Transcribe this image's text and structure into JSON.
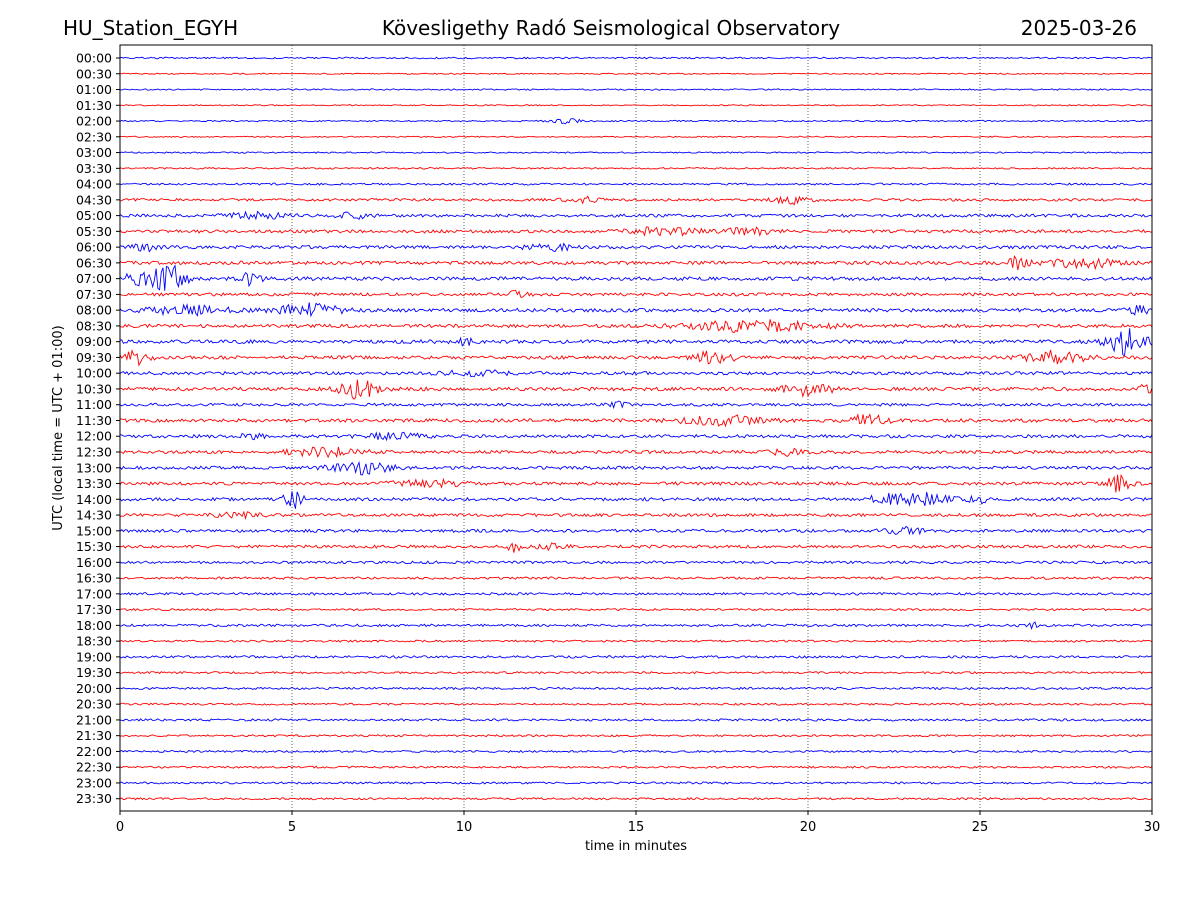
{
  "header": {
    "station": "HU_Station_EGYH",
    "title": "Kövesligethy Radó Seismological Observatory",
    "date": "2025-03-26"
  },
  "chart_data": {
    "type": "line",
    "chart_kind": "helicorder",
    "xlabel": "time in minutes",
    "ylabel": "UTC (local time = UTC + 01:00)",
    "xlim": [
      0,
      30
    ],
    "xticks": [
      "0",
      "5",
      "10",
      "15",
      "20",
      "25",
      "30"
    ],
    "grid": "vertical dotted lines at each x tick",
    "trace_colors": [
      "#0000ff",
      "#ff0000"
    ],
    "row_labels": [
      "00:00",
      "00:30",
      "01:00",
      "01:30",
      "02:00",
      "02:30",
      "03:00",
      "03:30",
      "04:00",
      "04:30",
      "05:00",
      "05:30",
      "06:00",
      "06:30",
      "07:00",
      "07:30",
      "08:00",
      "08:30",
      "09:00",
      "09:30",
      "10:00",
      "10:30",
      "11:00",
      "11:30",
      "12:00",
      "12:30",
      "13:00",
      "13:30",
      "14:00",
      "14:30",
      "15:00",
      "15:30",
      "16:00",
      "16:30",
      "17:00",
      "17:30",
      "18:00",
      "18:30",
      "19:00",
      "19:30",
      "20:00",
      "20:30",
      "21:00",
      "21:30",
      "22:00",
      "22:30",
      "23:00",
      "23:30"
    ],
    "base_noise": [
      0.8,
      0.6,
      0.7,
      0.6,
      0.7,
      0.6,
      0.7,
      0.8,
      1.0,
      1.3,
      1.5,
      1.6,
      1.6,
      1.7,
      1.8,
      1.5,
      1.8,
      1.7,
      1.8,
      1.7,
      1.6,
      1.8,
      1.4,
      1.7,
      1.6,
      1.6,
      1.6,
      1.6,
      1.6,
      1.5,
      1.5,
      1.5,
      1.3,
      1.2,
      1.2,
      1.0,
      1.2,
      1.0,
      1.2,
      1.0,
      1.1,
      1.0,
      1.1,
      1.0,
      1.0,
      1.0,
      1.0,
      1.0
    ],
    "bursts": [
      {
        "row": 4,
        "minute": 13.0,
        "amplitude": 2.5,
        "duration": 0.6
      },
      {
        "row": 9,
        "minute": 13.5,
        "amplitude": 2.5,
        "duration": 0.8
      },
      {
        "row": 9,
        "minute": 19.5,
        "amplitude": 4.0,
        "duration": 0.7
      },
      {
        "row": 10,
        "minute": 4.0,
        "amplitude": 3.0,
        "duration": 1.2
      },
      {
        "row": 10,
        "minute": 6.8,
        "amplitude": 3.0,
        "duration": 0.6
      },
      {
        "row": 11,
        "minute": 15.8,
        "amplitude": 3.5,
        "duration": 1.5
      },
      {
        "row": 11,
        "minute": 18.3,
        "amplitude": 3.0,
        "duration": 1.0
      },
      {
        "row": 12,
        "minute": 0.8,
        "amplitude": 3.0,
        "duration": 0.7
      },
      {
        "row": 12,
        "minute": 12.5,
        "amplitude": 3.0,
        "duration": 1.0
      },
      {
        "row": 13,
        "minute": 26.0,
        "amplitude": 6.0,
        "duration": 0.6
      },
      {
        "row": 13,
        "minute": 28.0,
        "amplitude": 5.0,
        "duration": 1.2
      },
      {
        "row": 14,
        "minute": 0.9,
        "amplitude": 7.0,
        "duration": 1.2
      },
      {
        "row": 14,
        "minute": 1.5,
        "amplitude": 9.0,
        "duration": 0.5
      },
      {
        "row": 14,
        "minute": 3.8,
        "amplitude": 6.0,
        "duration": 0.4
      },
      {
        "row": 15,
        "minute": 11.5,
        "amplitude": 3.0,
        "duration": 0.5
      },
      {
        "row": 16,
        "minute": 2.0,
        "amplitude": 5.0,
        "duration": 1.5
      },
      {
        "row": 16,
        "minute": 5.5,
        "amplitude": 6.0,
        "duration": 1.2
      },
      {
        "row": 16,
        "minute": 29.7,
        "amplitude": 4.0,
        "duration": 0.5
      },
      {
        "row": 17,
        "minute": 18.5,
        "amplitude": 6.0,
        "duration": 2.5
      },
      {
        "row": 18,
        "minute": 29.3,
        "amplitude": 13.0,
        "duration": 0.8
      },
      {
        "row": 18,
        "minute": 10.0,
        "amplitude": 3.0,
        "duration": 0.4
      },
      {
        "row": 19,
        "minute": 0.4,
        "amplitude": 7.0,
        "duration": 0.6
      },
      {
        "row": 19,
        "minute": 17.3,
        "amplitude": 6.0,
        "duration": 0.8
      },
      {
        "row": 19,
        "minute": 27.2,
        "amplitude": 6.0,
        "duration": 1.2
      },
      {
        "row": 20,
        "minute": 10.5,
        "amplitude": 2.5,
        "duration": 1.5
      },
      {
        "row": 21,
        "minute": 6.9,
        "amplitude": 9.0,
        "duration": 0.8
      },
      {
        "row": 21,
        "minute": 20.0,
        "amplitude": 6.0,
        "duration": 1.0
      },
      {
        "row": 21,
        "minute": 29.8,
        "amplitude": 5.0,
        "duration": 0.4
      },
      {
        "row": 22,
        "minute": 14.5,
        "amplitude": 2.5,
        "duration": 0.4
      },
      {
        "row": 23,
        "minute": 17.5,
        "amplitude": 5.0,
        "duration": 1.5
      },
      {
        "row": 23,
        "minute": 21.8,
        "amplitude": 8.0,
        "duration": 0.6
      },
      {
        "row": 24,
        "minute": 3.8,
        "amplitude": 3.0,
        "duration": 0.5
      },
      {
        "row": 24,
        "minute": 8.0,
        "amplitude": 3.0,
        "duration": 1.2
      },
      {
        "row": 25,
        "minute": 6.0,
        "amplitude": 4.0,
        "duration": 1.5
      },
      {
        "row": 25,
        "minute": 19.5,
        "amplitude": 3.0,
        "duration": 0.8
      },
      {
        "row": 26,
        "minute": 7.0,
        "amplitude": 6.0,
        "duration": 1.2
      },
      {
        "row": 27,
        "minute": 9.0,
        "amplitude": 3.0,
        "duration": 1.5
      },
      {
        "row": 27,
        "minute": 29.0,
        "amplitude": 8.0,
        "duration": 0.5
      },
      {
        "row": 28,
        "minute": 5.0,
        "amplitude": 9.0,
        "duration": 0.4
      },
      {
        "row": 28,
        "minute": 23.0,
        "amplitude": 7.0,
        "duration": 1.5
      },
      {
        "row": 28,
        "minute": 25.0,
        "amplitude": 3.0,
        "duration": 0.4
      },
      {
        "row": 29,
        "minute": 3.5,
        "amplitude": 2.0,
        "duration": 1.0
      },
      {
        "row": 30,
        "minute": 22.8,
        "amplitude": 3.0,
        "duration": 0.8
      },
      {
        "row": 31,
        "minute": 11.5,
        "amplitude": 5.0,
        "duration": 0.3
      },
      {
        "row": 31,
        "minute": 12.5,
        "amplitude": 3.0,
        "duration": 0.6
      },
      {
        "row": 36,
        "minute": 26.5,
        "amplitude": 2.5,
        "duration": 0.5
      }
    ]
  }
}
